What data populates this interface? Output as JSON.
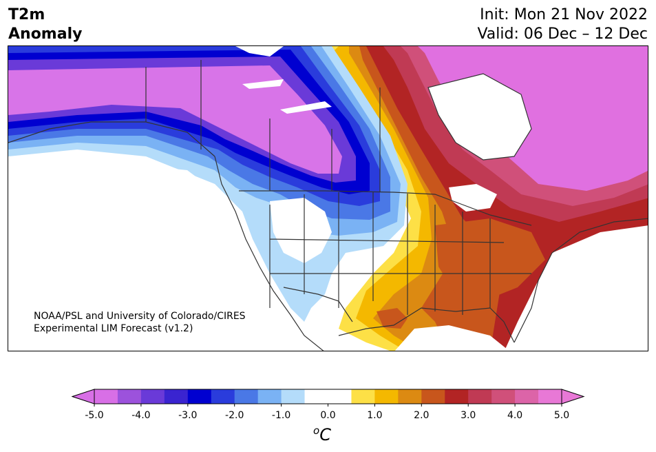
{
  "header": {
    "title_line1": "T2m",
    "title_line2": "Anomaly",
    "init": "Init: Mon 21 Nov 2022",
    "valid": "Valid: 06 Dec – 12 Dec"
  },
  "credit": {
    "line1": "NOAA/PSL and University of Colorado/CIRES",
    "line2": "Experimental LIM Forecast (v1.2)"
  },
  "colorbar": {
    "units_base": "C",
    "units_sup": "o",
    "colors": [
      "#d86fe6",
      "#9c52dc",
      "#6a3ad8",
      "#3a24d0",
      "#0000d0",
      "#2a3cdc",
      "#4a78e6",
      "#7ab2f4",
      "#b4dcfa",
      "#ffffff",
      "#ffffff",
      "#fde046",
      "#f4b800",
      "#dc8a12",
      "#c8561c",
      "#b22424",
      "#c03a54",
      "#d0507a",
      "#dc64a8",
      "#e878d6"
    ],
    "ticks": [
      "-5.0",
      "-4.0",
      "-3.0",
      "-2.0",
      "-1.0",
      "0.0",
      "1.0",
      "2.0",
      "3.0",
      "4.0",
      "5.0"
    ]
  },
  "map": {
    "colors": {
      "magenta": "#e070e0",
      "purple": "#d874e8",
      "violet": "#6a3ad8",
      "blue_dark": "#0000d0",
      "blue": "#2a3cdc",
      "blue_mid": "#4a78e6",
      "blue_light": "#7ab2f4",
      "blue_pale": "#b4dcfa",
      "yellow": "#fde046",
      "gold": "#f4b800",
      "orange": "#dc8a12",
      "rust": "#c8561c",
      "red": "#b22424",
      "crimson": "#c03a54",
      "rose": "#d0507a",
      "pink": "#dc64a8",
      "land_line": "#333333"
    }
  }
}
